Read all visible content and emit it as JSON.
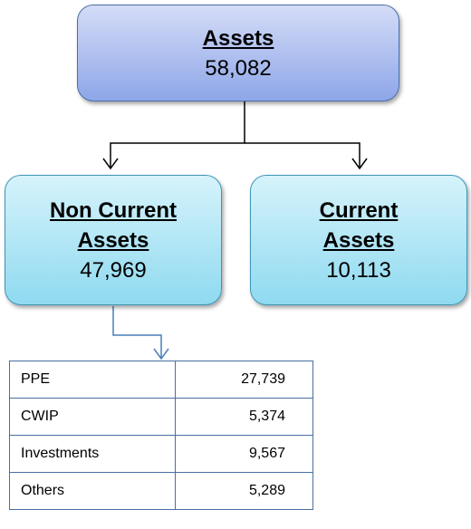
{
  "nodes": [
    {
      "label": "Assets",
      "value": "58,082"
    },
    {
      "label": "Non Current Assets",
      "value": "47,969"
    },
    {
      "label": "Current Assets",
      "value": "10,113"
    }
  ],
  "table": {
    "rows": [
      [
        "PPE",
        "27,739"
      ],
      [
        "CWIP",
        "5,374"
      ],
      [
        "Investments",
        "9,567"
      ],
      [
        "Others",
        "5,289"
      ]
    ]
  }
}
